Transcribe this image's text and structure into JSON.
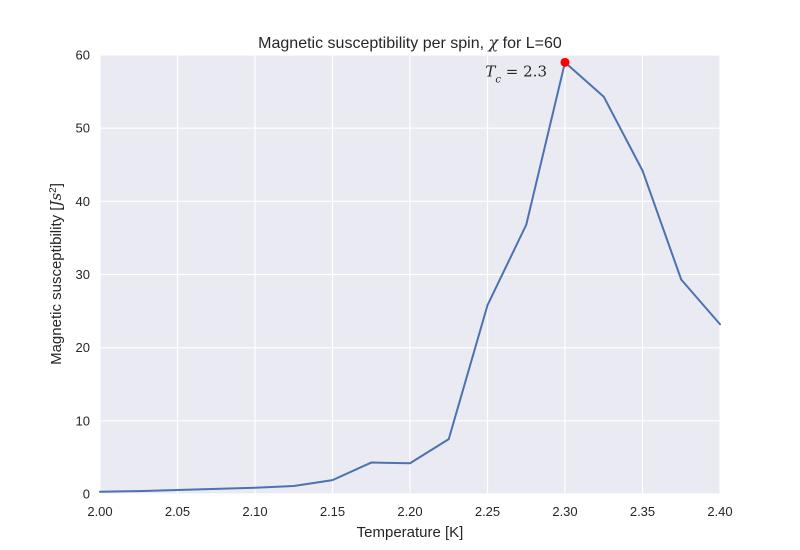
{
  "chart_data": {
    "type": "line",
    "title": {
      "prefix": "Magnetic susceptibility per spin, ",
      "symbol": "χ",
      "suffix": " for L=60"
    },
    "xlabel": "Temperature [K]",
    "ylabel": {
      "text": "Magnetic susceptibility [",
      "unit": "Js",
      "unit_sup": "2",
      "close": "]"
    },
    "xlim": [
      2.0,
      2.4
    ],
    "ylim": [
      0,
      60
    ],
    "xticks": [
      2.0,
      2.05,
      2.1,
      2.15,
      2.2,
      2.25,
      2.3,
      2.35,
      2.4
    ],
    "xtick_labels": [
      "2.00",
      "2.05",
      "2.10",
      "2.15",
      "2.20",
      "2.25",
      "2.30",
      "2.35",
      "2.40"
    ],
    "yticks": [
      0,
      10,
      20,
      30,
      40,
      50,
      60
    ],
    "ytick_labels": [
      "0",
      "10",
      "20",
      "30",
      "40",
      "50",
      "60"
    ],
    "grid": true,
    "series": [
      {
        "color": "#4c72b0",
        "x": [
          2.0,
          2.025,
          2.05,
          2.075,
          2.1,
          2.125,
          2.15,
          2.175,
          2.2,
          2.225,
          2.25,
          2.275,
          2.3,
          2.325,
          2.35,
          2.375,
          2.4
        ],
        "y": [
          0.3,
          0.4,
          0.55,
          0.7,
          0.85,
          1.1,
          1.9,
          4.3,
          4.2,
          7.5,
          25.8,
          36.8,
          59.0,
          54.3,
          44.2,
          29.3,
          23.2
        ]
      }
    ],
    "highlight": {
      "x": 2.3,
      "y": 59.0,
      "color": "#ff0000",
      "label_symbol": "T",
      "label_sub": "c",
      "label_value": " = 2.3"
    }
  }
}
